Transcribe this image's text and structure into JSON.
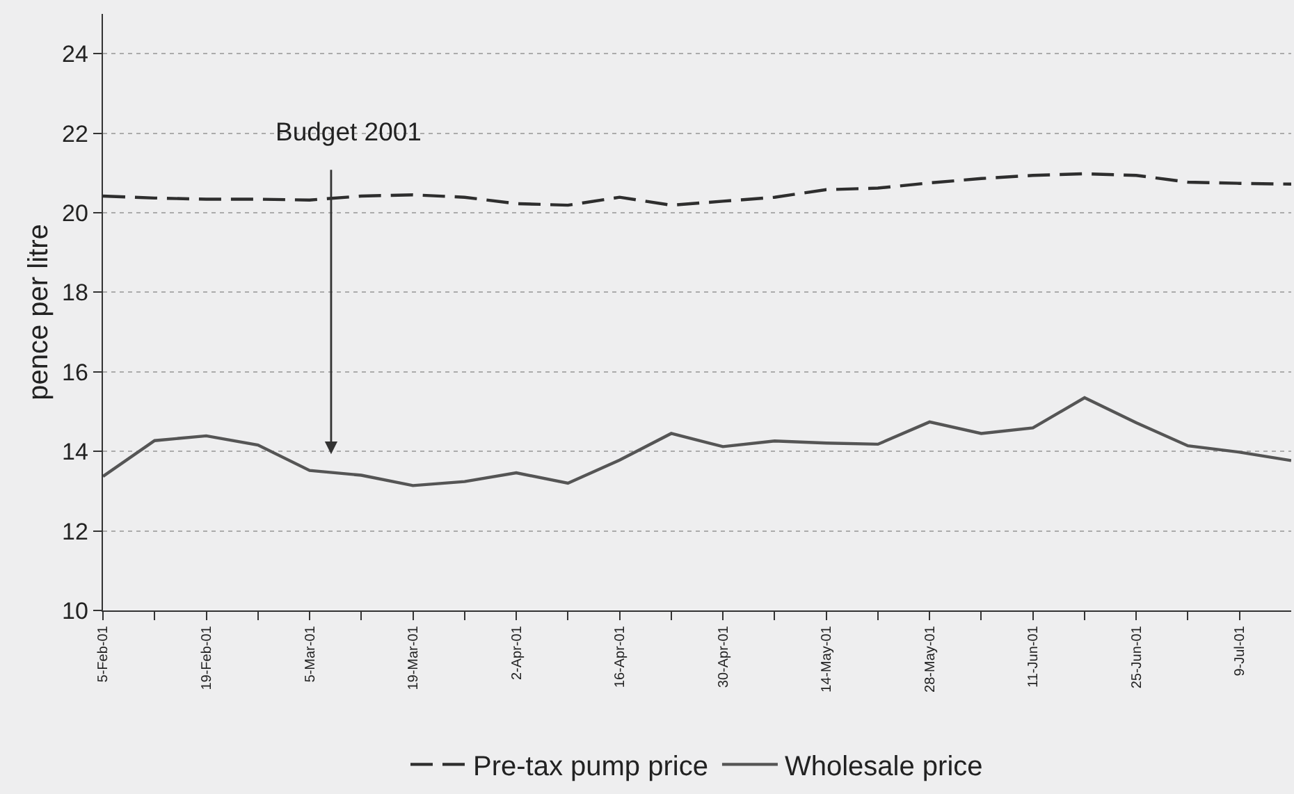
{
  "chart_data": {
    "type": "line",
    "ylabel": "pence per litre",
    "x": [
      "2001-02-05",
      "2001-02-12",
      "2001-02-19",
      "2001-02-26",
      "2001-03-05",
      "2001-03-12",
      "2001-03-19",
      "2001-03-26",
      "2001-04-02",
      "2001-04-09",
      "2001-04-16",
      "2001-04-23",
      "2001-04-30",
      "2001-05-07",
      "2001-05-14",
      "2001-05-21",
      "2001-05-28",
      "2001-06-04",
      "2001-06-11",
      "2001-06-18",
      "2001-06-25",
      "2001-07-02",
      "2001-07-09",
      "2001-07-16"
    ],
    "series": [
      {
        "name": "Pre-tax pump price",
        "color": "#2e2e2e",
        "line_style": "dashed",
        "values": [
          20.42,
          20.37,
          20.34,
          20.34,
          20.32,
          20.42,
          20.45,
          20.39,
          20.23,
          20.19,
          20.39,
          20.19,
          20.29,
          20.39,
          20.58,
          20.62,
          20.75,
          20.86,
          20.94,
          20.98,
          20.94,
          20.77,
          20.74,
          20.72
        ]
      },
      {
        "name": "Wholesale price",
        "color": "#555555",
        "line_style": "solid",
        "values": [
          13.37,
          14.27,
          14.39,
          14.16,
          13.52,
          13.4,
          13.14,
          13.24,
          13.46,
          13.2,
          13.78,
          14.45,
          14.12,
          14.26,
          14.21,
          14.18,
          14.74,
          14.45,
          14.59,
          15.35,
          14.72,
          14.14,
          13.98,
          13.77
        ]
      }
    ],
    "xlim": [
      "2001-02-05",
      "2001-07-16"
    ],
    "xticks": [
      {
        "value": "2001-02-05",
        "label": "5-Feb-01"
      },
      {
        "value": "2001-02-12",
        "label": null
      },
      {
        "value": "2001-02-19",
        "label": "19-Feb-01"
      },
      {
        "value": "2001-02-26",
        "label": null
      },
      {
        "value": "2001-03-05",
        "label": "5-Mar-01"
      },
      {
        "value": "2001-03-12",
        "label": null
      },
      {
        "value": "2001-03-19",
        "label": "19-Mar-01"
      },
      {
        "value": "2001-03-26",
        "label": null
      },
      {
        "value": "2001-04-02",
        "label": "2-Apr-01"
      },
      {
        "value": "2001-04-09",
        "label": null
      },
      {
        "value": "2001-04-16",
        "label": "16-Apr-01"
      },
      {
        "value": "2001-04-23",
        "label": null
      },
      {
        "value": "2001-04-30",
        "label": "30-Apr-01"
      },
      {
        "value": "2001-05-07",
        "label": null
      },
      {
        "value": "2001-05-14",
        "label": "14-May-01"
      },
      {
        "value": "2001-05-21",
        "label": null
      },
      {
        "value": "2001-05-28",
        "label": "28-May-01"
      },
      {
        "value": "2001-06-04",
        "label": null
      },
      {
        "value": "2001-06-11",
        "label": "11-Jun-01"
      },
      {
        "value": "2001-06-18",
        "label": null
      },
      {
        "value": "2001-06-25",
        "label": "25-Jun-01"
      },
      {
        "value": "2001-07-02",
        "label": null
      },
      {
        "value": "2001-07-09",
        "label": "9-Jul-01"
      }
    ],
    "ylim": [
      10,
      25
    ],
    "yticks": [
      10,
      12,
      14,
      16,
      18,
      20,
      22,
      24
    ],
    "annotations": [
      "Budget 2001"
    ],
    "grid": "y",
    "legend": "bottom"
  }
}
